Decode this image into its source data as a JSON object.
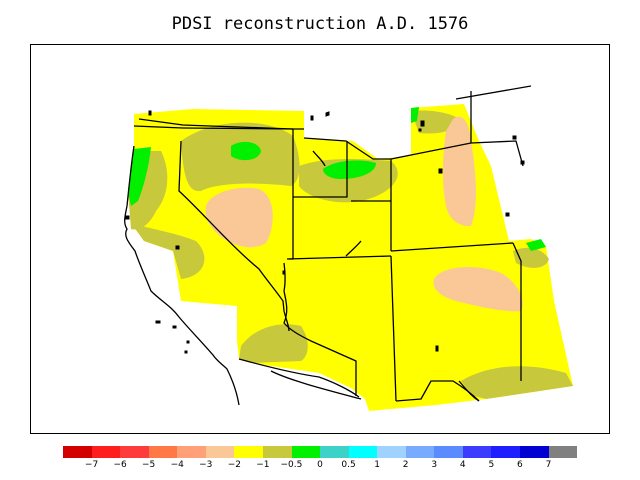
{
  "title": "PDSI reconstruction A.D. 1576",
  "colors": {
    "yellow": "#ffff00",
    "olive": "#c8c83c",
    "green": "#00f000",
    "peach": "#fac896",
    "outline": "#000000"
  },
  "colorbar": {
    "swatches": [
      "#d20000",
      "#ff1e1e",
      "#ff3c3c",
      "#ff7846",
      "#ffa078",
      "#fac896",
      "#ffff00",
      "#c8c83c",
      "#00f000",
      "#3cd2c8",
      "#00ffff",
      "#a0d2ff",
      "#78aaff",
      "#5a8cff",
      "#3c3cff",
      "#1e1eff",
      "#0000d2",
      "#808080"
    ],
    "labels": [
      "−7",
      "−6",
      "−5",
      "−4",
      "−3",
      "−2",
      "−1",
      "−0.5",
      "0",
      "0.5",
      "1",
      "2",
      "3",
      "4",
      "5",
      "6",
      "7"
    ]
  }
}
